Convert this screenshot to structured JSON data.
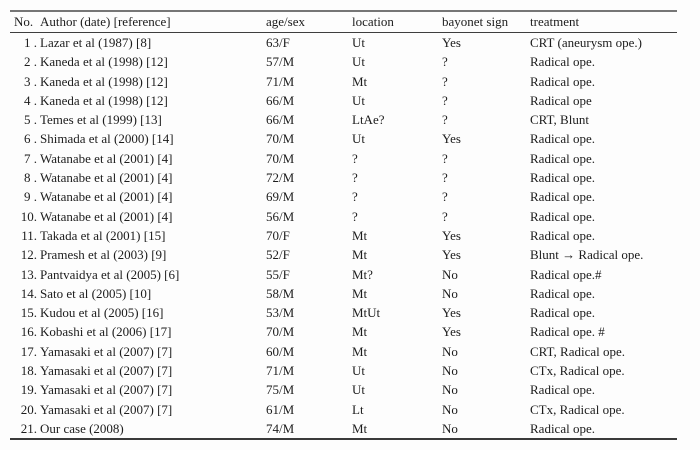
{
  "page": {
    "background": "#fdfdfd",
    "text_color": "#1c1c1c",
    "top_rule_color": "#767676",
    "header_rule_color": "#3e3e3e",
    "bottom_rule_color": "#3a3a3a"
  },
  "table": {
    "columns": [
      "No.",
      "Author (date) [reference]",
      "age/sex",
      "location",
      "bayonet sign",
      "treatment"
    ],
    "rows": [
      {
        "no": "1 .",
        "author": "Lazar et al (1987) [8]",
        "age_sex": "63/F",
        "location": "Ut",
        "bayonet_sign": "Yes",
        "treatment": "CRT (aneurysm ope.)"
      },
      {
        "no": "2 .",
        "author": "Kaneda et al (1998) [12]",
        "age_sex": "57/M",
        "location": "Ut",
        "bayonet_sign": "?",
        "treatment": "Radical ope."
      },
      {
        "no": "3 .",
        "author": "Kaneda et al (1998) [12]",
        "age_sex": "71/M",
        "location": "Mt",
        "bayonet_sign": "?",
        "treatment": "Radical ope."
      },
      {
        "no": "4 .",
        "author": "Kaneda et al (1998) [12]",
        "age_sex": "66/M",
        "location": "Ut",
        "bayonet_sign": "?",
        "treatment": "Radical ope"
      },
      {
        "no": "5 .",
        "author": "Temes et al (1999) [13]",
        "age_sex": "66/M",
        "location": "LtAe?",
        "bayonet_sign": "?",
        "treatment": "CRT, Blunt"
      },
      {
        "no": "6 .",
        "author": "Shimada et al (2000) [14]",
        "age_sex": "70/M",
        "location": "Ut",
        "bayonet_sign": "Yes",
        "treatment": "Radical ope."
      },
      {
        "no": "7 .",
        "author": "Watanabe et al (2001) [4]",
        "age_sex": "70/M",
        "location": "?",
        "bayonet_sign": "?",
        "treatment": "Radical ope."
      },
      {
        "no": "8 .",
        "author": "Watanabe et al (2001) [4]",
        "age_sex": "72/M",
        "location": "?",
        "bayonet_sign": "?",
        "treatment": "Radical ope."
      },
      {
        "no": "9 .",
        "author": "Watanabe et al (2001) [4]",
        "age_sex": "69/M",
        "location": "?",
        "bayonet_sign": "?",
        "treatment": "Radical ope."
      },
      {
        "no": "10.",
        "author": "Watanabe et al (2001) [4]",
        "age_sex": "56/M",
        "location": "?",
        "bayonet_sign": "?",
        "treatment": "Radical ope."
      },
      {
        "no": "11.",
        "author": "Takada et al (2001) [15]",
        "age_sex": "70/F",
        "location": "Mt",
        "bayonet_sign": "Yes",
        "treatment": "Radical ope."
      },
      {
        "no": "12.",
        "author": "Pramesh et al (2003) [9]",
        "age_sex": "52/F",
        "location": "Mt",
        "bayonet_sign": "Yes",
        "treatment": "Blunt → Radical ope."
      },
      {
        "no": "13.",
        "author": "Pantvaidya et al (2005) [6]",
        "age_sex": "55/F",
        "location": "Mt?",
        "bayonet_sign": "No",
        "treatment": "Radical ope.#"
      },
      {
        "no": "14.",
        "author": "Sato et al (2005) [10]",
        "age_sex": "58/M",
        "location": "Mt",
        "bayonet_sign": "No",
        "treatment": "Radical ope."
      },
      {
        "no": "15.",
        "author": "Kudou et al (2005) [16]",
        "age_sex": "53/M",
        "location": "MtUt",
        "bayonet_sign": "Yes",
        "treatment": "Radical ope."
      },
      {
        "no": "16.",
        "author": "Kobashi et al (2006) [17]",
        "age_sex": "70/M",
        "location": "Mt",
        "bayonet_sign": "Yes",
        "treatment": "Radical ope. #"
      },
      {
        "no": "17.",
        "author": "Yamasaki et al (2007) [7]",
        "age_sex": "60/M",
        "location": "Mt",
        "bayonet_sign": "No",
        "treatment": "CRT, Radical ope."
      },
      {
        "no": "18.",
        "author": "Yamasaki et al (2007) [7]",
        "age_sex": "71/M",
        "location": "Ut",
        "bayonet_sign": "No",
        "treatment": "CTx, Radical ope."
      },
      {
        "no": "19.",
        "author": "Yamasaki et al (2007) [7]",
        "age_sex": "75/M",
        "location": "Ut",
        "bayonet_sign": "No",
        "treatment": "Radical ope."
      },
      {
        "no": "20.",
        "author": "Yamasaki et al (2007) [7]",
        "age_sex": "61/M",
        "location": "Lt",
        "bayonet_sign": "No",
        "treatment": "CTx, Radical ope."
      },
      {
        "no": "21.",
        "author": "Our case (2008)",
        "age_sex": "74/M",
        "location": "Mt",
        "bayonet_sign": "No",
        "treatment": "Radical ope."
      }
    ]
  }
}
